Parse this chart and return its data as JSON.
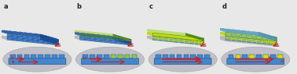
{
  "panels": [
    "a",
    "b",
    "c",
    "d"
  ],
  "bg_color": "#e8e8e8",
  "figure_width": 3.78,
  "figure_height": 0.95,
  "dpi": 100,
  "panel_label_fontsize": 6,
  "panel_label_color": "#222222",
  "colors": {
    "blue_face": "#5599dd",
    "blue_top": "#88bbee",
    "blue_right": "#2266aa",
    "blue_dark": "#1a4488",
    "green_face": "#99cc44",
    "green_top": "#bbdd77",
    "green_right": "#558822",
    "yellow_line": "#ccdd00",
    "gray_plate_top": "#b8b8b8",
    "gray_plate_face": "#888888",
    "gray_plate_right": "#666666",
    "gray_bg": "#d0d0d0",
    "red": "#cc2222",
    "inset_bg": "#c0c0c8",
    "inset_edge": "#aaaaaa",
    "blue_bar": "#4488cc",
    "blue_bar_top": "#6699cc",
    "white": "#ffffff"
  },
  "panel_a": {
    "has_green": false,
    "has_grid": false,
    "blue_rows": 8,
    "blue_cols": 10
  },
  "panel_b": {
    "has_green": true,
    "blue_grid": false,
    "green_grid": false,
    "blue_rows": 5,
    "blue_cols": 10,
    "green_rows": 2,
    "green_cols": 10
  },
  "panel_c": {
    "has_green": true,
    "blue_grid": true,
    "green_grid": false,
    "blue_rows": 5,
    "blue_cols": 10,
    "green_rows": 3,
    "green_cols": 8
  },
  "panel_d": {
    "has_green": true,
    "blue_grid": true,
    "green_grid": true,
    "blue_rows": 5,
    "blue_cols": 10,
    "green_rows": 4,
    "green_cols": 8
  }
}
